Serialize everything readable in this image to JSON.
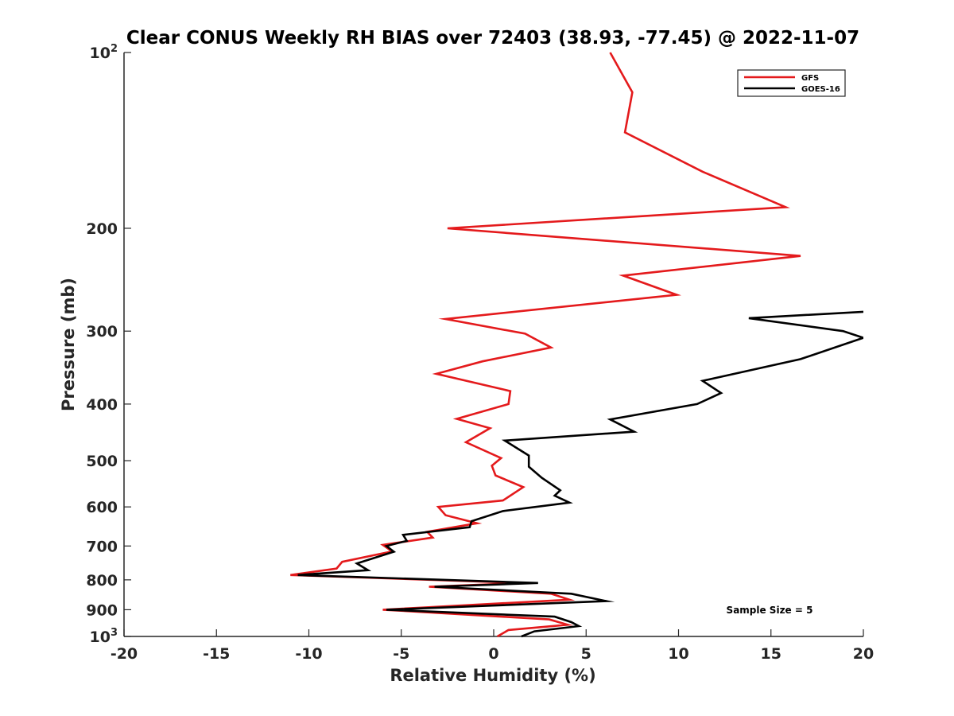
{
  "chart_data": {
    "type": "line",
    "title": "Clear CONUS Weekly RH BIAS over 72403 (38.93, -77.45) @ 2022-11-07",
    "xlabel": "Relative Humidity (%)",
    "ylabel": "Pressure (mb)",
    "xlim": [
      -20,
      20
    ],
    "ylim": [
      100,
      1000
    ],
    "y_scale": "log",
    "y_reversed": true,
    "xticks": [
      -20,
      -15,
      -10,
      -5,
      0,
      5,
      10,
      15,
      20
    ],
    "xtick_labels": [
      "-20",
      "-15",
      "-10",
      "-5",
      "0",
      "5",
      "10",
      "15",
      "20"
    ],
    "yticks": [
      100,
      200,
      300,
      400,
      500,
      600,
      700,
      800,
      900,
      1000
    ],
    "ytick_labels": [
      {
        "base": "10",
        "exp": "2"
      },
      {
        "base": "200",
        "exp": ""
      },
      {
        "base": "300",
        "exp": ""
      },
      {
        "base": "400",
        "exp": ""
      },
      {
        "base": "500",
        "exp": ""
      },
      {
        "base": "600",
        "exp": ""
      },
      {
        "base": "700",
        "exp": ""
      },
      {
        "base": "800",
        "exp": ""
      },
      {
        "base": "900",
        "exp": ""
      },
      {
        "base": "10",
        "exp": "3"
      }
    ],
    "grid": false,
    "legend_position": "top-right",
    "annotation": "Sample Size = 5",
    "series": [
      {
        "name": "GFS",
        "color": "#e41a1c",
        "points": [
          {
            "x": 6.3,
            "p": 100
          },
          {
            "x": 7.5,
            "p": 117
          },
          {
            "x": 7.1,
            "p": 137
          },
          {
            "x": 11.3,
            "p": 160
          },
          {
            "x": 15.8,
            "p": 184
          },
          {
            "x": -2.5,
            "p": 200
          },
          {
            "x": 16.6,
            "p": 223
          },
          {
            "x": 7.0,
            "p": 241
          },
          {
            "x": 9.9,
            "p": 260
          },
          {
            "x": -2.6,
            "p": 286
          },
          {
            "x": 1.7,
            "p": 303
          },
          {
            "x": 3.1,
            "p": 320
          },
          {
            "x": -0.6,
            "p": 338
          },
          {
            "x": -3.1,
            "p": 355
          },
          {
            "x": 0.9,
            "p": 380
          },
          {
            "x": 0.8,
            "p": 400
          },
          {
            "x": -2.0,
            "p": 424
          },
          {
            "x": -0.2,
            "p": 440
          },
          {
            "x": -1.5,
            "p": 465
          },
          {
            "x": 0.4,
            "p": 495
          },
          {
            "x": -0.1,
            "p": 510
          },
          {
            "x": 0.1,
            "p": 530
          },
          {
            "x": 1.6,
            "p": 555
          },
          {
            "x": 0.5,
            "p": 585
          },
          {
            "x": -3.0,
            "p": 600
          },
          {
            "x": -2.6,
            "p": 620
          },
          {
            "x": -0.9,
            "p": 640
          },
          {
            "x": -3.6,
            "p": 662
          },
          {
            "x": -3.3,
            "p": 677
          },
          {
            "x": -6.0,
            "p": 697
          },
          {
            "x": -5.5,
            "p": 715
          },
          {
            "x": -8.2,
            "p": 745
          },
          {
            "x": -8.5,
            "p": 765
          },
          {
            "x": -11.0,
            "p": 785
          },
          {
            "x": 1.6,
            "p": 810
          },
          {
            "x": -3.5,
            "p": 822
          },
          {
            "x": 3.1,
            "p": 845
          },
          {
            "x": 4.1,
            "p": 865
          },
          {
            "x": -6.0,
            "p": 900
          },
          {
            "x": 3.0,
            "p": 935
          },
          {
            "x": 4.0,
            "p": 955
          },
          {
            "x": 0.8,
            "p": 975
          },
          {
            "x": 0.2,
            "p": 1000
          }
        ]
      },
      {
        "name": "GOES-16",
        "color": "#000000",
        "points": [
          {
            "x": 20.0,
            "p": 278
          },
          {
            "x": 13.8,
            "p": 285
          },
          {
            "x": 18.9,
            "p": 300
          },
          {
            "x": 20.0,
            "p": 308
          },
          {
            "x": 16.6,
            "p": 335
          },
          {
            "x": 11.3,
            "p": 365
          },
          {
            "x": 12.3,
            "p": 383
          },
          {
            "x": 11.0,
            "p": 400
          },
          {
            "x": 6.3,
            "p": 425
          },
          {
            "x": 7.6,
            "p": 446
          },
          {
            "x": 0.6,
            "p": 462
          },
          {
            "x": 1.9,
            "p": 490
          },
          {
            "x": 1.9,
            "p": 512
          },
          {
            "x": 2.6,
            "p": 535
          },
          {
            "x": 3.6,
            "p": 562
          },
          {
            "x": 3.3,
            "p": 574
          },
          {
            "x": 4.1,
            "p": 590
          },
          {
            "x": 0.5,
            "p": 610
          },
          {
            "x": -1.2,
            "p": 635
          },
          {
            "x": -1.3,
            "p": 650
          },
          {
            "x": -4.9,
            "p": 670
          },
          {
            "x": -4.7,
            "p": 686
          },
          {
            "x": -5.8,
            "p": 700
          },
          {
            "x": -5.4,
            "p": 716
          },
          {
            "x": -7.4,
            "p": 750
          },
          {
            "x": -6.8,
            "p": 770
          },
          {
            "x": -10.6,
            "p": 785
          },
          {
            "x": 2.4,
            "p": 810
          },
          {
            "x": -3.2,
            "p": 822
          },
          {
            "x": 4.2,
            "p": 845
          },
          {
            "x": 6.1,
            "p": 870
          },
          {
            "x": -5.8,
            "p": 900
          },
          {
            "x": 3.3,
            "p": 925
          },
          {
            "x": 4.2,
            "p": 945
          },
          {
            "x": 4.6,
            "p": 960
          },
          {
            "x": 2.2,
            "p": 980
          },
          {
            "x": 1.5,
            "p": 1000
          }
        ]
      }
    ]
  }
}
